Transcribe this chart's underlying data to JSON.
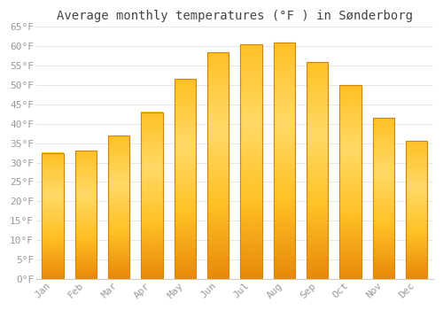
{
  "title": "Average monthly temperatures (°F ) in Sønderborg",
  "months": [
    "Jan",
    "Feb",
    "Mar",
    "Apr",
    "May",
    "Jun",
    "Jul",
    "Aug",
    "Sep",
    "Oct",
    "Nov",
    "Dec"
  ],
  "values": [
    32.5,
    33.0,
    37.0,
    43.0,
    51.5,
    58.5,
    60.5,
    61.0,
    56.0,
    50.0,
    41.5,
    35.5
  ],
  "bar_color_top": "#FFD966",
  "bar_color_mid": "#FFC125",
  "bar_color_bottom": "#E8890A",
  "bar_edge_color": "#D4820A",
  "background_color": "#FFFFFF",
  "grid_color": "#E0E0E0",
  "ylim": [
    0,
    65
  ],
  "yticks": [
    0,
    5,
    10,
    15,
    20,
    25,
    30,
    35,
    40,
    45,
    50,
    55,
    60,
    65
  ],
  "title_fontsize": 10,
  "tick_fontsize": 8,
  "tick_font_color": "#999999",
  "title_color": "#444444"
}
